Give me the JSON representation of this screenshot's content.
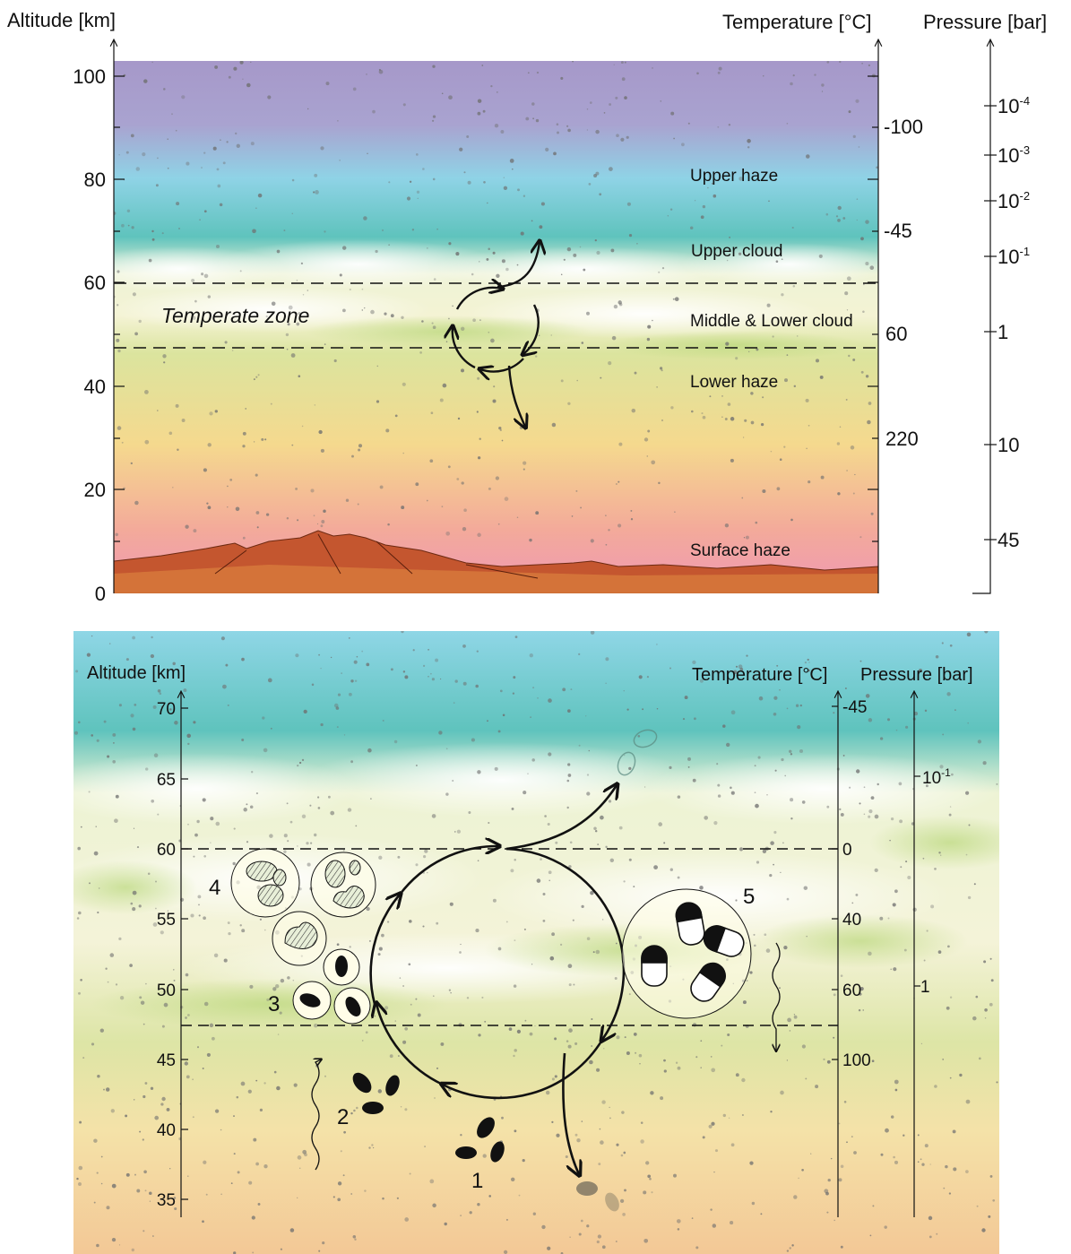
{
  "top_panel": {
    "axes": {
      "altitude_title": "Altitude [km]",
      "temperature_title": "Temperature [°C]",
      "pressure_title": "Pressure [bar]"
    },
    "altitude_ticks": [
      "100",
      "80",
      "60",
      "40",
      "20",
      "0"
    ],
    "temperature_labels": [
      "-100",
      "-45",
      "60",
      "220"
    ],
    "pressure_labels": [
      "10",
      "10",
      "10",
      "10",
      "1",
      "10",
      "45"
    ],
    "pressure_exponents": [
      "-4",
      "-3",
      "-2",
      "-1"
    ],
    "layers": {
      "upper_haze": "Upper haze",
      "upper_cloud": "Upper cloud",
      "middle_lower_cloud": "Middle & Lower cloud",
      "lower_haze": "Lower haze",
      "surface_haze": "Surface haze"
    },
    "zone_label": "Temperate zone"
  },
  "bottom_panel": {
    "axes": {
      "altitude_title": "Altitude [km]",
      "temperature_title": "Temperature [°C]",
      "pressure_title": "Pressure [bar]"
    },
    "altitude_ticks": [
      "70",
      "65",
      "60",
      "55",
      "50",
      "45",
      "40",
      "35"
    ],
    "temperature_labels": [
      "-45",
      "0",
      "40",
      "60",
      "100"
    ],
    "pressure_labels": [
      "10",
      "1"
    ],
    "pressure_exponents": [
      "-1"
    ],
    "stage_numbers": [
      "1",
      "2",
      "3",
      "4",
      "5"
    ]
  },
  "colors": {
    "sky_top": "#a79bcb",
    "sky_cyan": "#8fd6e6",
    "teal": "#5fc2bd",
    "cloud": "#f6f5d8",
    "haze_green": "#dfe6a2",
    "haze_orange": "#f3c99a",
    "surface_pink": "#ef9ab4",
    "rock": "#c0532b",
    "line": "#111111"
  }
}
